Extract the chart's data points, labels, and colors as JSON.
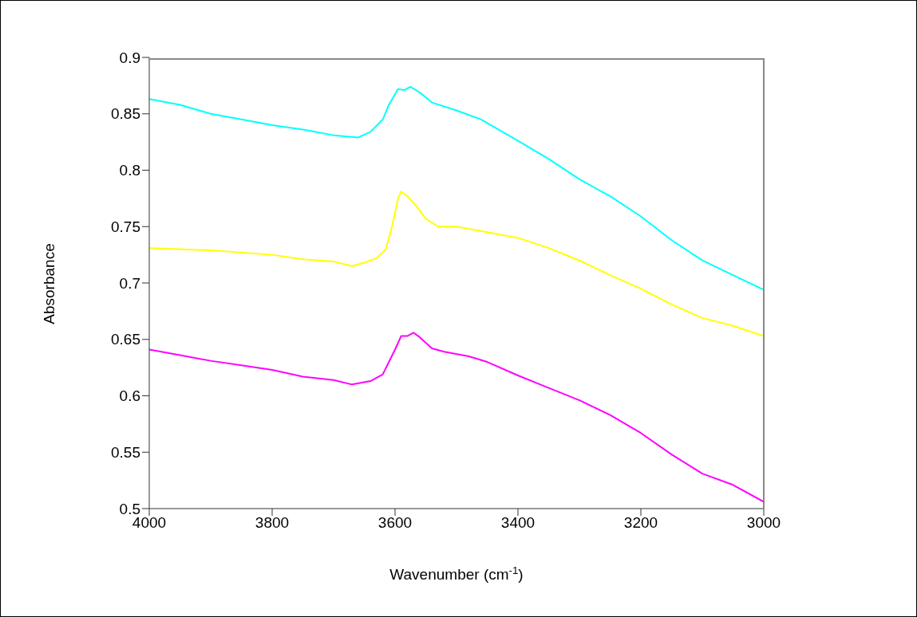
{
  "chart_data": {
    "type": "line",
    "xlabel": "Wavenumber (cm$^{-1}$)",
    "ylabel": "Absorbance",
    "xlim": [
      4000,
      3000
    ],
    "xticks": [
      4000,
      3800,
      3600,
      3400,
      3200,
      3000
    ],
    "ylim": [
      0.5,
      0.9
    ],
    "yticks": [
      0.5,
      0.55,
      0.6,
      0.65,
      0.7,
      0.75,
      0.8,
      0.85,
      0.9
    ],
    "grid": false,
    "series": [
      {
        "color": "#00ffff",
        "x": [
          4000,
          3950,
          3900,
          3850,
          3800,
          3750,
          3700,
          3660,
          3640,
          3620,
          3610,
          3595,
          3585,
          3575,
          3560,
          3540,
          3500,
          3460,
          3400,
          3350,
          3300,
          3250,
          3200,
          3150,
          3100,
          3050,
          3000
        ],
        "values": [
          0.863,
          0.858,
          0.85,
          0.845,
          0.84,
          0.836,
          0.831,
          0.829,
          0.834,
          0.845,
          0.858,
          0.872,
          0.871,
          0.874,
          0.869,
          0.86,
          0.853,
          0.845,
          0.826,
          0.81,
          0.792,
          0.777,
          0.759,
          0.738,
          0.72,
          0.707,
          0.694
        ]
      },
      {
        "color": "#ffff00",
        "x": [
          4000,
          3900,
          3800,
          3750,
          3700,
          3670,
          3650,
          3630,
          3615,
          3605,
          3595,
          3590,
          3580,
          3565,
          3550,
          3530,
          3500,
          3450,
          3400,
          3350,
          3300,
          3250,
          3200,
          3150,
          3100,
          3050,
          3000
        ],
        "values": [
          0.731,
          0.729,
          0.725,
          0.721,
          0.719,
          0.715,
          0.718,
          0.722,
          0.73,
          0.75,
          0.775,
          0.781,
          0.777,
          0.768,
          0.757,
          0.75,
          0.75,
          0.745,
          0.74,
          0.731,
          0.72,
          0.707,
          0.695,
          0.681,
          0.669,
          0.662,
          0.653
        ]
      },
      {
        "color": "#ff00ff",
        "x": [
          4000,
          3950,
          3900,
          3850,
          3800,
          3750,
          3700,
          3670,
          3640,
          3620,
          3610,
          3600,
          3590,
          3580,
          3570,
          3560,
          3540,
          3520,
          3480,
          3450,
          3400,
          3350,
          3300,
          3250,
          3200,
          3150,
          3100,
          3050,
          3000
        ],
        "values": [
          0.641,
          0.636,
          0.631,
          0.627,
          0.623,
          0.617,
          0.614,
          0.61,
          0.613,
          0.619,
          0.63,
          0.641,
          0.653,
          0.653,
          0.656,
          0.652,
          0.642,
          0.639,
          0.635,
          0.63,
          0.618,
          0.607,
          0.596,
          0.583,
          0.567,
          0.548,
          0.531,
          0.521,
          0.506
        ]
      }
    ]
  }
}
